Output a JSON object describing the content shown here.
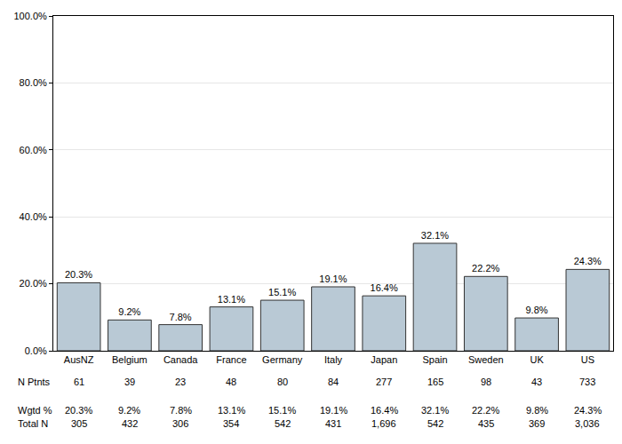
{
  "chart_data": {
    "type": "bar",
    "categories": [
      "AusNZ",
      "Belgium",
      "Canada",
      "France",
      "Germany",
      "Italy",
      "Japan",
      "Spain",
      "Sweden",
      "UK",
      "US"
    ],
    "values": [
      20.3,
      9.2,
      7.8,
      13.1,
      15.1,
      19.1,
      16.4,
      32.1,
      22.2,
      9.8,
      24.3
    ],
    "value_labels": [
      "20.3%",
      "9.2%",
      "7.8%",
      "13.1%",
      "15.1%",
      "19.1%",
      "16.4%",
      "32.1%",
      "22.2%",
      "9.8%",
      "24.3%"
    ],
    "data_labels": true,
    "color": "#b9c9d5",
    "ylim": [
      0,
      100
    ],
    "yticks": [
      {
        "value": 0,
        "label": "0.0%"
      },
      {
        "value": 20,
        "label": "20.0%"
      },
      {
        "value": 40,
        "label": "40.0%"
      },
      {
        "value": 60,
        "label": "60.0%"
      },
      {
        "value": 80,
        "label": "80.0%"
      },
      {
        "value": 100,
        "label": "100.0%"
      }
    ],
    "grid": true,
    "table": {
      "rows": [
        {
          "label": "N Ptnts",
          "cells": [
            "61",
            "39",
            "23",
            "48",
            "80",
            "84",
            "277",
            "165",
            "98",
            "43",
            "733"
          ]
        },
        {
          "label": "Wgtd %",
          "cells": [
            "20.3%",
            "9.2%",
            "7.8%",
            "13.1%",
            "15.1%",
            "19.1%",
            "16.4%",
            "32.1%",
            "22.2%",
            "9.8%",
            "24.3%"
          ]
        },
        {
          "label": "Total N",
          "cells": [
            "305",
            "432",
            "306",
            "354",
            "542",
            "431",
            "1,696",
            "542",
            "435",
            "369",
            "3,036"
          ]
        }
      ]
    }
  }
}
